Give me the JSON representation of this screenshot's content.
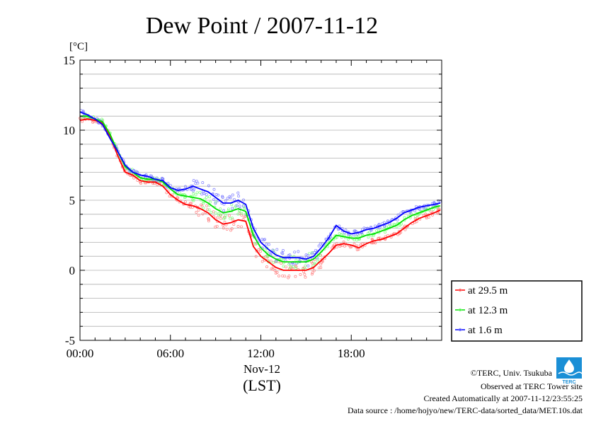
{
  "title": "Dew Point / 2007-11-12",
  "chart_data": {
    "type": "line",
    "title": "Dew Point / 2007-11-12",
    "ylabel": "[°C]",
    "xlabel": "(LST)",
    "date_label": "Nov-12",
    "ylim": [
      -5,
      15
    ],
    "xlim_hours": [
      0,
      24
    ],
    "x_tick_labels": [
      "00:00",
      "06:00",
      "12:00",
      "18:00"
    ],
    "x_ticks_hours": [
      0,
      6,
      12,
      18
    ],
    "y_ticks": [
      -5,
      0,
      5,
      10,
      15
    ],
    "grid": true,
    "legend_position": "right",
    "x_hours": [
      0,
      0.5,
      1,
      1.5,
      2,
      2.5,
      3,
      3.5,
      4,
      4.5,
      5,
      5.5,
      6,
      6.5,
      7,
      7.5,
      8,
      8.5,
      9,
      9.5,
      10,
      10.5,
      11,
      11.5,
      12,
      12.5,
      13,
      13.5,
      14,
      14.5,
      15,
      15.5,
      16,
      16.5,
      17,
      17.5,
      18,
      18.5,
      19,
      19.5,
      20,
      20.5,
      21,
      21.5,
      22,
      22.5,
      23,
      23.5,
      23.9
    ],
    "series": [
      {
        "name": "at 29.5 m",
        "color": "#ff0000",
        "point_color": "#ff8080",
        "values": [
          10.7,
          10.8,
          10.7,
          10.5,
          9.6,
          8.2,
          7.0,
          6.8,
          6.4,
          6.3,
          6.3,
          6.0,
          5.4,
          5.0,
          4.7,
          4.6,
          4.4,
          4.1,
          3.6,
          3.3,
          3.4,
          3.6,
          3.5,
          1.7,
          1.0,
          0.6,
          0.2,
          0.0,
          0.0,
          0.0,
          0.0,
          0.2,
          0.7,
          1.2,
          1.8,
          1.9,
          1.8,
          1.6,
          1.9,
          2.1,
          2.2,
          2.4,
          2.6,
          3.0,
          3.4,
          3.7,
          3.9,
          4.1,
          4.3
        ]
      },
      {
        "name": "at 12.3 m",
        "color": "#00e000",
        "point_color": "#80ff80",
        "values": [
          11.0,
          11.0,
          10.8,
          10.6,
          9.7,
          8.5,
          7.4,
          7.0,
          6.6,
          6.5,
          6.5,
          6.3,
          5.8,
          5.4,
          5.3,
          5.2,
          5.1,
          4.8,
          4.4,
          4.1,
          4.2,
          4.4,
          4.2,
          2.5,
          1.6,
          1.1,
          0.8,
          0.6,
          0.6,
          0.6,
          0.6,
          0.8,
          1.3,
          1.9,
          2.5,
          2.4,
          2.3,
          2.3,
          2.5,
          2.6,
          2.8,
          3.0,
          3.2,
          3.6,
          3.9,
          4.1,
          4.3,
          4.5,
          4.6
        ]
      },
      {
        "name": "at 1.6 m",
        "color": "#0000ff",
        "point_color": "#8080ff",
        "values": [
          11.3,
          11.1,
          10.8,
          10.4,
          9.4,
          8.5,
          7.5,
          7.0,
          6.8,
          6.7,
          6.5,
          6.4,
          5.9,
          5.7,
          5.8,
          6.0,
          5.8,
          5.6,
          5.2,
          4.8,
          4.8,
          5.0,
          4.7,
          3.0,
          2.0,
          1.5,
          1.1,
          0.9,
          0.9,
          0.9,
          0.8,
          1.0,
          1.6,
          2.3,
          3.2,
          2.8,
          2.6,
          2.7,
          2.9,
          3.0,
          3.2,
          3.4,
          3.7,
          4.1,
          4.3,
          4.5,
          4.6,
          4.7,
          4.8
        ]
      }
    ]
  },
  "credits": {
    "copyright": "©TERC, Univ. Tsukuba",
    "observed": "Observed at TERC Tower site",
    "created": "Created Automatically at 2007-11-12/23:55:25",
    "source": "Data source : /home/hojyo/new/TERC-data/sorted_data/MET.10s.dat",
    "logo_text": "TERC"
  },
  "colors": {
    "logo_blue": "#1a8fd6"
  }
}
